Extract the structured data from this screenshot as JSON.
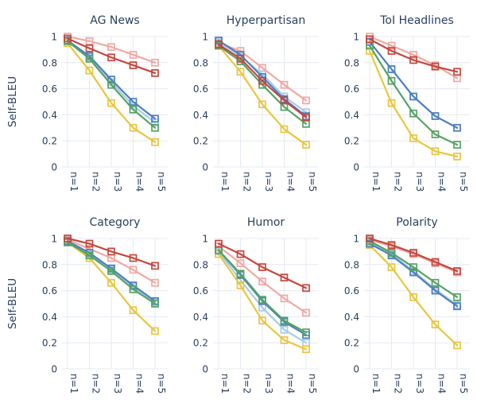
{
  "figure": {
    "ylabel": "Self-BLEU",
    "background": "#ffffff",
    "grid_color": "#e4e9f2",
    "text_color": "#2a3f5f",
    "x_tick_labels": [
      "n=1",
      "n=2",
      "n=3",
      "n=4",
      "n=5"
    ],
    "y_ticks": [
      0,
      0.2,
      0.4,
      0.6,
      0.8,
      1
    ],
    "y_tick_labels": [
      "0",
      "0.2",
      "0.4",
      "0.6",
      "0.8",
      "1"
    ],
    "legend": "none",
    "marker": "open-square"
  },
  "palette": {
    "salmon": "#f1a8a2",
    "light-blue": "#a9cce6",
    "yellow": "#e9c63e",
    "blue": "#4e7fc0",
    "green": "#55a364",
    "red": "#c4473d"
  },
  "chart_data": [
    {
      "type": "line",
      "title": "AG News",
      "xlabel": "",
      "ylabel": "Self-BLEU",
      "categories": [
        "n=1",
        "n=2",
        "n=3",
        "n=4",
        "n=5"
      ],
      "ylim": [
        0,
        1
      ],
      "grid": true,
      "legend": "none",
      "series": [
        {
          "name": "salmon",
          "color": "#f1a8a2",
          "values": [
            1.0,
            0.965,
            0.92,
            0.86,
            0.8
          ]
        },
        {
          "name": "light-blue",
          "color": "#a9cce6",
          "values": [
            0.97,
            0.84,
            0.65,
            0.47,
            0.34
          ]
        },
        {
          "name": "yellow",
          "color": "#e9c63e",
          "values": [
            0.95,
            0.74,
            0.49,
            0.3,
            0.19
          ]
        },
        {
          "name": "blue",
          "color": "#4e7fc0",
          "values": [
            0.97,
            0.85,
            0.67,
            0.5,
            0.37
          ]
        },
        {
          "name": "green",
          "color": "#55a364",
          "values": [
            0.965,
            0.83,
            0.63,
            0.44,
            0.3
          ]
        },
        {
          "name": "red",
          "color": "#c4473d",
          "values": [
            0.985,
            0.91,
            0.84,
            0.78,
            0.72
          ]
        }
      ]
    },
    {
      "type": "line",
      "title": "Hyperpartisan",
      "xlabel": "",
      "ylabel": "Self-BLEU",
      "categories": [
        "n=1",
        "n=2",
        "n=3",
        "n=4",
        "n=5"
      ],
      "ylim": [
        0,
        1
      ],
      "grid": true,
      "legend": "none",
      "series": [
        {
          "name": "salmon",
          "color": "#f1a8a2",
          "values": [
            0.95,
            0.89,
            0.76,
            0.63,
            0.51
          ]
        },
        {
          "name": "light-blue",
          "color": "#a9cce6",
          "values": [
            0.96,
            0.85,
            0.71,
            0.54,
            0.42
          ]
        },
        {
          "name": "yellow",
          "color": "#e9c63e",
          "values": [
            0.93,
            0.73,
            0.48,
            0.29,
            0.17
          ]
        },
        {
          "name": "blue",
          "color": "#4e7fc0",
          "values": [
            0.97,
            0.86,
            0.69,
            0.52,
            0.39
          ]
        },
        {
          "name": "green",
          "color": "#55a364",
          "values": [
            0.93,
            0.81,
            0.63,
            0.46,
            0.33
          ]
        },
        {
          "name": "red",
          "color": "#c4473d",
          "values": [
            0.94,
            0.83,
            0.66,
            0.51,
            0.38
          ]
        }
      ]
    },
    {
      "type": "line",
      "title": "ToI Headlines",
      "xlabel": "",
      "ylabel": "Self-BLEU",
      "categories": [
        "n=1",
        "n=2",
        "n=3",
        "n=4",
        "n=5"
      ],
      "ylim": [
        0,
        1
      ],
      "grid": true,
      "legend": "none",
      "series": [
        {
          "name": "salmon",
          "color": "#f1a8a2",
          "values": [
            1.0,
            0.93,
            0.86,
            0.78,
            0.68
          ]
        },
        {
          "name": "light-blue",
          "color": "#a9cce6",
          "values": [
            0.96,
            0.75,
            0.54,
            0.39,
            0.3
          ]
        },
        {
          "name": "yellow",
          "color": "#e9c63e",
          "values": [
            0.89,
            0.49,
            0.22,
            0.12,
            0.08
          ]
        },
        {
          "name": "blue",
          "color": "#4e7fc0",
          "values": [
            0.96,
            0.75,
            0.54,
            0.39,
            0.3
          ]
        },
        {
          "name": "green",
          "color": "#55a364",
          "values": [
            0.93,
            0.66,
            0.41,
            0.25,
            0.17
          ]
        },
        {
          "name": "red",
          "color": "#c4473d",
          "values": [
            0.98,
            0.89,
            0.82,
            0.77,
            0.73
          ]
        }
      ]
    },
    {
      "type": "line",
      "title": "Category",
      "xlabel": "",
      "ylabel": "Self-BLEU",
      "categories": [
        "n=1",
        "n=2",
        "n=3",
        "n=4",
        "n=5"
      ],
      "ylim": [
        0,
        1
      ],
      "grid": true,
      "legend": "none",
      "series": [
        {
          "name": "salmon",
          "color": "#f1a8a2",
          "values": [
            0.99,
            0.92,
            0.85,
            0.76,
            0.66
          ]
        },
        {
          "name": "light-blue",
          "color": "#a9cce6",
          "values": [
            0.975,
            0.88,
            0.76,
            0.63,
            0.51
          ]
        },
        {
          "name": "yellow",
          "color": "#e9c63e",
          "values": [
            0.97,
            0.85,
            0.66,
            0.45,
            0.29
          ]
        },
        {
          "name": "blue",
          "color": "#4e7fc0",
          "values": [
            0.98,
            0.89,
            0.77,
            0.64,
            0.52
          ]
        },
        {
          "name": "green",
          "color": "#55a364",
          "values": [
            0.97,
            0.87,
            0.75,
            0.61,
            0.5
          ]
        },
        {
          "name": "red",
          "color": "#c4473d",
          "values": [
            1.0,
            0.96,
            0.9,
            0.85,
            0.79
          ]
        }
      ]
    },
    {
      "type": "line",
      "title": "Humor",
      "xlabel": "",
      "ylabel": "Self-BLEU",
      "categories": [
        "n=1",
        "n=2",
        "n=3",
        "n=4",
        "n=5"
      ],
      "ylim": [
        0,
        1
      ],
      "grid": true,
      "legend": "none",
      "series": [
        {
          "name": "salmon",
          "color": "#f1a8a2",
          "values": [
            0.94,
            0.81,
            0.67,
            0.54,
            0.43
          ]
        },
        {
          "name": "light-blue",
          "color": "#a9cce6",
          "values": [
            0.9,
            0.68,
            0.47,
            0.3,
            0.2
          ]
        },
        {
          "name": "yellow",
          "color": "#e9c63e",
          "values": [
            0.88,
            0.64,
            0.37,
            0.22,
            0.15
          ]
        },
        {
          "name": "blue",
          "color": "#4e7fc0",
          "values": [
            0.91,
            0.72,
            0.52,
            0.36,
            0.26
          ]
        },
        {
          "name": "green",
          "color": "#55a364",
          "values": [
            0.91,
            0.73,
            0.53,
            0.37,
            0.28
          ]
        },
        {
          "name": "red",
          "color": "#c4473d",
          "values": [
            0.96,
            0.88,
            0.78,
            0.7,
            0.62
          ]
        }
      ]
    },
    {
      "type": "line",
      "title": "Polarity",
      "xlabel": "",
      "ylabel": "Self-BLEU",
      "categories": [
        "n=1",
        "n=2",
        "n=3",
        "n=4",
        "n=5"
      ],
      "ylim": [
        0,
        1
      ],
      "grid": true,
      "legend": "none",
      "series": [
        {
          "name": "salmon",
          "color": "#f1a8a2",
          "values": [
            0.99,
            0.94,
            0.88,
            0.81,
            0.74
          ]
        },
        {
          "name": "light-blue",
          "color": "#a9cce6",
          "values": [
            0.97,
            0.88,
            0.75,
            0.61,
            0.49
          ]
        },
        {
          "name": "yellow",
          "color": "#e9c63e",
          "values": [
            0.95,
            0.78,
            0.55,
            0.34,
            0.18
          ]
        },
        {
          "name": "blue",
          "color": "#4e7fc0",
          "values": [
            0.96,
            0.87,
            0.74,
            0.6,
            0.48
          ]
        },
        {
          "name": "green",
          "color": "#55a364",
          "values": [
            0.98,
            0.89,
            0.78,
            0.66,
            0.55
          ]
        },
        {
          "name": "red",
          "color": "#c4473d",
          "values": [
            1.0,
            0.95,
            0.89,
            0.82,
            0.75
          ]
        }
      ]
    }
  ]
}
